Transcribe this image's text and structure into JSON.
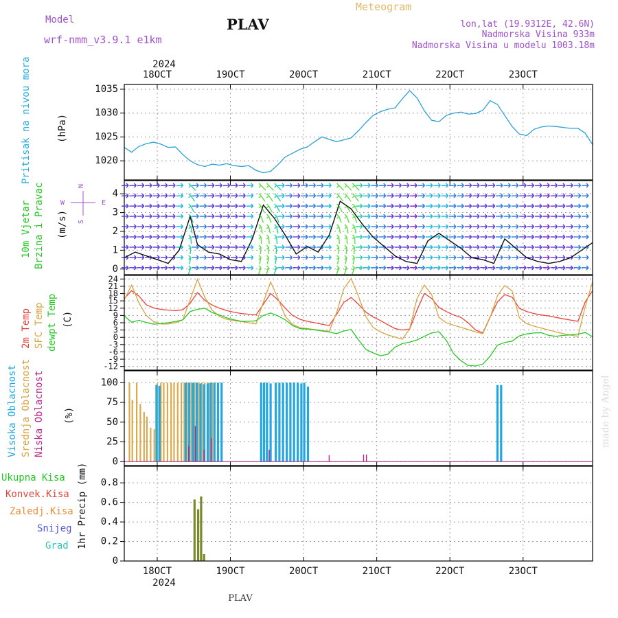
{
  "header": {
    "model_label": "Model",
    "model_name": "wrf-nmm_v3.9.1 e1km",
    "title": "PLAV",
    "product": "Meteogram",
    "lonlat": "lon,lat (19.9312E, 42.6N)",
    "elevation": "Nadmorska Visina 933m",
    "model_elevation": "Nadmorska Visina u modelu 1003.18m",
    "bottom_title": "PLAV",
    "credit": "made by Angel"
  },
  "colors": {
    "pressure": "#2a9fd6",
    "temp2m": "#e8423a",
    "sfc_temp": "#d9a441",
    "dewpoint": "#23c823",
    "high_cloud": "#22a7e0",
    "mid_cloud": "#dba84a",
    "low_cloud": "#c0208a",
    "precip_total": "#23c823",
    "precip_conv": "#e8423a",
    "precip_frozen": "#f08a35",
    "snow": "#5555dd",
    "hail": "#2ec4b6",
    "model_text": "#a050d0",
    "product_text": "#e2b96a"
  },
  "chart_data": [
    {
      "type": "line",
      "panel": "pressure",
      "ylabel_main": "Pritisak na nivou mora",
      "unit": "(hPa)",
      "x_ticks": [
        "18OCT",
        "19OCT",
        "20OCT",
        "21OCT",
        "22OCT",
        "23OCT"
      ],
      "year": "2024",
      "xlim": [
        17.55,
        23.95
      ],
      "ylim": [
        1016,
        1036
      ],
      "y_ticks": [
        1020,
        1025,
        1030,
        1035
      ],
      "grid": true,
      "series": [
        {
          "x": [
            17.55,
            17.65,
            17.75,
            17.85,
            17.95,
            18.05,
            18.15,
            18.25,
            18.35,
            18.45,
            18.55,
            18.65,
            18.75,
            18.85,
            18.95,
            19.05,
            19.15,
            19.25,
            19.35,
            19.45,
            19.55,
            19.65,
            19.75,
            19.85,
            19.95,
            20.05,
            20.15,
            20.25,
            20.35,
            20.45,
            20.55,
            20.65,
            20.75,
            20.85,
            20.95,
            21.05,
            21.15,
            21.25,
            21.35,
            21.45,
            21.55,
            21.65,
            21.75,
            21.85,
            21.95,
            22.05,
            22.15,
            22.25,
            22.35,
            22.45,
            22.55,
            22.65,
            22.75,
            22.85,
            22.95,
            23.05,
            23.15,
            23.25,
            23.35,
            23.45,
            23.55,
            23.65,
            23.75,
            23.85,
            23.95
          ],
          "values": [
            1022.8,
            1021.8,
            1023.0,
            1023.6,
            1023.9,
            1023.5,
            1022.8,
            1022.9,
            1021.3,
            1020.0,
            1019.2,
            1018.8,
            1019.3,
            1019.1,
            1019.4,
            1019.0,
            1018.8,
            1019.0,
            1018.0,
            1017.5,
            1017.8,
            1019.2,
            1020.8,
            1021.6,
            1022.4,
            1022.9,
            1024.0,
            1025.0,
            1024.5,
            1024.0,
            1024.4,
            1024.8,
            1026.3,
            1028.0,
            1029.5,
            1030.3,
            1030.8,
            1031.1,
            1033.0,
            1034.7,
            1033.2,
            1030.5,
            1028.5,
            1028.2,
            1029.5,
            1030.0,
            1030.2,
            1029.8,
            1029.9,
            1030.6,
            1032.6,
            1031.8,
            1029.5,
            1027.2,
            1025.6,
            1025.3,
            1026.6,
            1027.1,
            1027.3,
            1027.2,
            1027.0,
            1026.8,
            1026.8,
            1025.8,
            1023.4
          ]
        }
      ]
    },
    {
      "type": "line",
      "panel": "wind",
      "ylabel_main": "10m Vjetar",
      "ylabel_sub": "Brzina i Pravac",
      "unit": "(m/s)",
      "compass": {
        "n": "N",
        "s": "S",
        "w": "W",
        "e": "E"
      },
      "xlim": [
        17.55,
        23.95
      ],
      "ylim": [
        -0.3,
        4.7
      ],
      "y_ticks": [
        0,
        1,
        2,
        3,
        4
      ],
      "grid": true,
      "series": [
        {
          "name": "speed",
          "x": [
            17.55,
            17.7,
            17.85,
            18.0,
            18.15,
            18.3,
            18.45,
            18.55,
            18.7,
            18.85,
            19.0,
            19.15,
            19.3,
            19.45,
            19.6,
            19.75,
            19.9,
            20.05,
            20.2,
            20.35,
            20.5,
            20.65,
            20.8,
            20.95,
            21.1,
            21.25,
            21.4,
            21.55,
            21.7,
            21.85,
            22.0,
            22.15,
            22.3,
            22.45,
            22.6,
            22.75,
            22.9,
            23.05,
            23.2,
            23.35,
            23.5,
            23.65,
            23.8,
            23.95
          ],
          "values": [
            0.6,
            0.9,
            0.7,
            0.5,
            0.3,
            1.0,
            2.8,
            1.3,
            0.9,
            0.8,
            0.5,
            0.4,
            1.6,
            3.4,
            2.7,
            1.8,
            0.8,
            1.2,
            0.9,
            1.8,
            3.6,
            3.2,
            2.4,
            1.7,
            1.2,
            0.7,
            0.4,
            0.3,
            1.5,
            1.9,
            1.5,
            1.1,
            0.6,
            0.5,
            0.3,
            1.6,
            1.1,
            0.6,
            0.4,
            0.3,
            0.4,
            0.6,
            1.0,
            1.4
          ]
        }
      ]
    },
    {
      "type": "line",
      "panel": "temperature",
      "labels": [
        "2m Temp",
        "SFC Temp",
        "dewpt Temp"
      ],
      "unit": "(C)",
      "xlim": [
        17.55,
        23.95
      ],
      "ylim": [
        -13.5,
        25.5
      ],
      "y_ticks": [
        24,
        21,
        18,
        15,
        12,
        9,
        6,
        3,
        0,
        -3,
        -6,
        -9,
        -12
      ],
      "grid": true,
      "series": [
        {
          "name": "2m Temp",
          "x": [
            17.55,
            17.65,
            17.75,
            17.85,
            17.95,
            18.05,
            18.15,
            18.25,
            18.35,
            18.45,
            18.55,
            18.65,
            18.75,
            18.85,
            18.95,
            19.05,
            19.15,
            19.25,
            19.35,
            19.45,
            19.55,
            19.65,
            19.75,
            19.85,
            19.95,
            20.05,
            20.15,
            20.25,
            20.35,
            20.45,
            20.55,
            20.65,
            20.75,
            20.85,
            20.95,
            21.05,
            21.15,
            21.25,
            21.35,
            21.45,
            21.55,
            21.65,
            21.75,
            21.85,
            21.95,
            22.05,
            22.15,
            22.25,
            22.35,
            22.45,
            22.55,
            22.65,
            22.75,
            22.85,
            22.95,
            23.05,
            23.15,
            23.25,
            23.35,
            23.45,
            23.55,
            23.65,
            23.75,
            23.85,
            23.95
          ],
          "values": [
            16.0,
            19.2,
            17.0,
            13.4,
            12.1,
            11.5,
            11.2,
            11.0,
            11.3,
            14.0,
            18.4,
            15.2,
            13.3,
            12.0,
            11.0,
            10.3,
            9.8,
            9.5,
            9.2,
            13.6,
            18.0,
            15.4,
            12.0,
            9.0,
            7.4,
            6.6,
            6.0,
            5.4,
            4.8,
            9.3,
            14.4,
            16.4,
            13.6,
            10.4,
            8.4,
            6.9,
            5.2,
            3.6,
            3.0,
            3.4,
            11.2,
            18.0,
            16.0,
            12.3,
            10.6,
            9.2,
            8.2,
            6.0,
            3.0,
            1.8,
            8.4,
            14.6,
            17.6,
            16.5,
            11.9,
            10.6,
            9.8,
            9.2,
            8.8,
            8.2,
            7.6,
            7.1,
            6.6,
            14.6,
            19.2
          ]
        },
        {
          "name": "SFC Temp",
          "x": [
            17.55,
            17.65,
            17.75,
            17.85,
            17.95,
            18.05,
            18.15,
            18.25,
            18.35,
            18.45,
            18.55,
            18.65,
            18.75,
            18.85,
            18.95,
            19.05,
            19.15,
            19.25,
            19.35,
            19.45,
            19.55,
            19.65,
            19.75,
            19.85,
            19.95,
            20.05,
            20.15,
            20.25,
            20.35,
            20.45,
            20.55,
            20.65,
            20.75,
            20.85,
            20.95,
            21.05,
            21.15,
            21.25,
            21.35,
            21.45,
            21.55,
            21.65,
            21.75,
            21.85,
            21.95,
            22.05,
            22.15,
            22.25,
            22.35,
            22.45,
            22.55,
            22.65,
            22.75,
            22.85,
            22.95,
            23.05,
            23.15,
            23.25,
            23.35,
            23.45,
            23.55,
            23.65,
            23.75,
            23.85,
            23.95
          ],
          "values": [
            15.5,
            21.5,
            14.2,
            9.0,
            6.5,
            5.5,
            5.5,
            6.0,
            7.2,
            15.5,
            23.9,
            16.5,
            11.2,
            8.6,
            7.4,
            6.9,
            6.5,
            6.0,
            5.5,
            14.5,
            22.8,
            16.0,
            8.6,
            5.3,
            4.0,
            3.6,
            3.2,
            2.8,
            2.5,
            10.0,
            20.0,
            24.2,
            17.0,
            8.6,
            4.1,
            2.2,
            1.0,
            0.1,
            -0.8,
            3.5,
            16.0,
            21.5,
            17.6,
            8.2,
            6.0,
            5.0,
            4.1,
            3.2,
            2.2,
            1.5,
            8.2,
            17.2,
            21.3,
            19.1,
            8.0,
            5.6,
            4.6,
            3.8,
            3.0,
            2.2,
            1.5,
            0.9,
            0.4,
            12.6,
            22.8
          ]
        },
        {
          "name": "dewpt Temp",
          "x": [
            17.55,
            17.65,
            17.75,
            17.85,
            17.95,
            18.05,
            18.15,
            18.25,
            18.35,
            18.45,
            18.55,
            18.65,
            18.75,
            18.85,
            18.95,
            19.05,
            19.15,
            19.25,
            19.35,
            19.45,
            19.55,
            19.65,
            19.75,
            19.85,
            19.95,
            20.05,
            20.15,
            20.25,
            20.35,
            20.45,
            20.55,
            20.65,
            20.75,
            20.85,
            20.95,
            21.05,
            21.15,
            21.25,
            21.35,
            21.45,
            21.55,
            21.65,
            21.75,
            21.85,
            21.95,
            22.05,
            22.15,
            22.25,
            22.35,
            22.45,
            22.55,
            22.65,
            22.75,
            22.85,
            22.95,
            23.05,
            23.15,
            23.25,
            23.35,
            23.45,
            23.55,
            23.65,
            23.75,
            23.85,
            23.95
          ],
          "values": [
            8.8,
            6.2,
            7.0,
            6.1,
            5.4,
            5.6,
            6.0,
            6.5,
            7.2,
            10.6,
            11.5,
            12.0,
            10.2,
            9.2,
            8.0,
            7.2,
            6.6,
            6.6,
            6.8,
            9.0,
            10.0,
            8.8,
            7.2,
            4.8,
            3.6,
            3.4,
            3.1,
            2.6,
            2.2,
            1.5,
            2.6,
            3.2,
            -1.0,
            -5.0,
            -6.4,
            -7.6,
            -7.0,
            -4.1,
            -2.6,
            -2.0,
            -1.1,
            0.4,
            1.8,
            2.3,
            -1.2,
            -6.7,
            -9.6,
            -11.6,
            -11.8,
            -11.0,
            -7.8,
            -3.2,
            -2.1,
            -1.6,
            0.6,
            1.4,
            1.8,
            1.9,
            0.8,
            0.4,
            0.8,
            1.0,
            1.3,
            2.0,
            0.2
          ]
        }
      ]
    },
    {
      "type": "bar",
      "panel": "clouds",
      "labels": [
        "Visoka Oblacnost",
        "Srednja Oblacnost",
        "Niska Oblacnost"
      ],
      "unit": "(%)",
      "xlim": [
        17.55,
        23.95
      ],
      "ylim": [
        -5,
        115
      ],
      "y_ticks": [
        0,
        25,
        50,
        75,
        100
      ],
      "grid": true,
      "series": [
        {
          "name": "Srednja Oblacnost",
          "x": [
            17.62,
            17.66,
            17.72,
            17.77,
            17.82,
            17.86,
            17.91,
            17.96,
            18.0,
            18.05,
            18.09,
            18.14,
            18.19,
            18.23,
            18.28,
            18.33,
            18.37,
            18.42,
            18.47,
            18.51,
            18.56,
            18.61,
            18.65,
            18.7,
            18.75,
            18.79
          ],
          "values": [
            100,
            78,
            100,
            73,
            63,
            57,
            43,
            41,
            99,
            100,
            100,
            100,
            100,
            100,
            100,
            100,
            100,
            100,
            100,
            100,
            100,
            100,
            100,
            100,
            100,
            100
          ]
        },
        {
          "name": "Visoka Oblacnost",
          "x": [
            17.99,
            18.03,
            18.39,
            18.44,
            18.49,
            18.54,
            18.59,
            18.64,
            18.69,
            18.73,
            18.78,
            18.83,
            18.88,
            19.42,
            19.46,
            19.5,
            19.55,
            19.62,
            19.67,
            19.72,
            19.77,
            19.82,
            19.87,
            19.92,
            19.97,
            20.01,
            20.06,
            22.65,
            22.7
          ],
          "values": [
            97,
            96,
            100,
            100,
            100,
            100,
            99,
            98,
            99,
            100,
            100,
            100,
            100,
            100,
            100,
            100,
            99,
            100,
            100,
            100,
            100,
            100,
            100,
            100,
            99,
            100,
            95,
            97,
            97
          ]
        },
        {
          "name": "Niska Oblacnost",
          "x": [
            18.43,
            18.52,
            18.64,
            18.74,
            19.53,
            20.35,
            20.82,
            20.86
          ],
          "values": [
            20,
            45,
            15,
            30,
            15,
            8,
            9,
            9
          ]
        }
      ]
    },
    {
      "type": "bar",
      "panel": "precip",
      "labels": [
        "Ukupna Kisa",
        "Konvek.Kisa",
        "Zaledj.Kisa",
        "Snijeg",
        "Grad"
      ],
      "ylabel_main": "1hr Precip",
      "unit": "(mm)",
      "x_ticks": [
        "18OCT",
        "19OCT",
        "20OCT",
        "21OCT",
        "22OCT",
        "23OCT"
      ],
      "year": "2024",
      "xlim": [
        17.55,
        23.95
      ],
      "ylim": [
        0,
        0.97
      ],
      "y_ticks": [
        0,
        0.2,
        0.4,
        0.6,
        0.8
      ],
      "grid": true,
      "series": [
        {
          "name": "Ukupna Kisa",
          "x": [
            18.51,
            18.56,
            18.6,
            18.64
          ],
          "values": [
            0.63,
            0.53,
            0.66,
            0.07
          ]
        }
      ]
    }
  ]
}
